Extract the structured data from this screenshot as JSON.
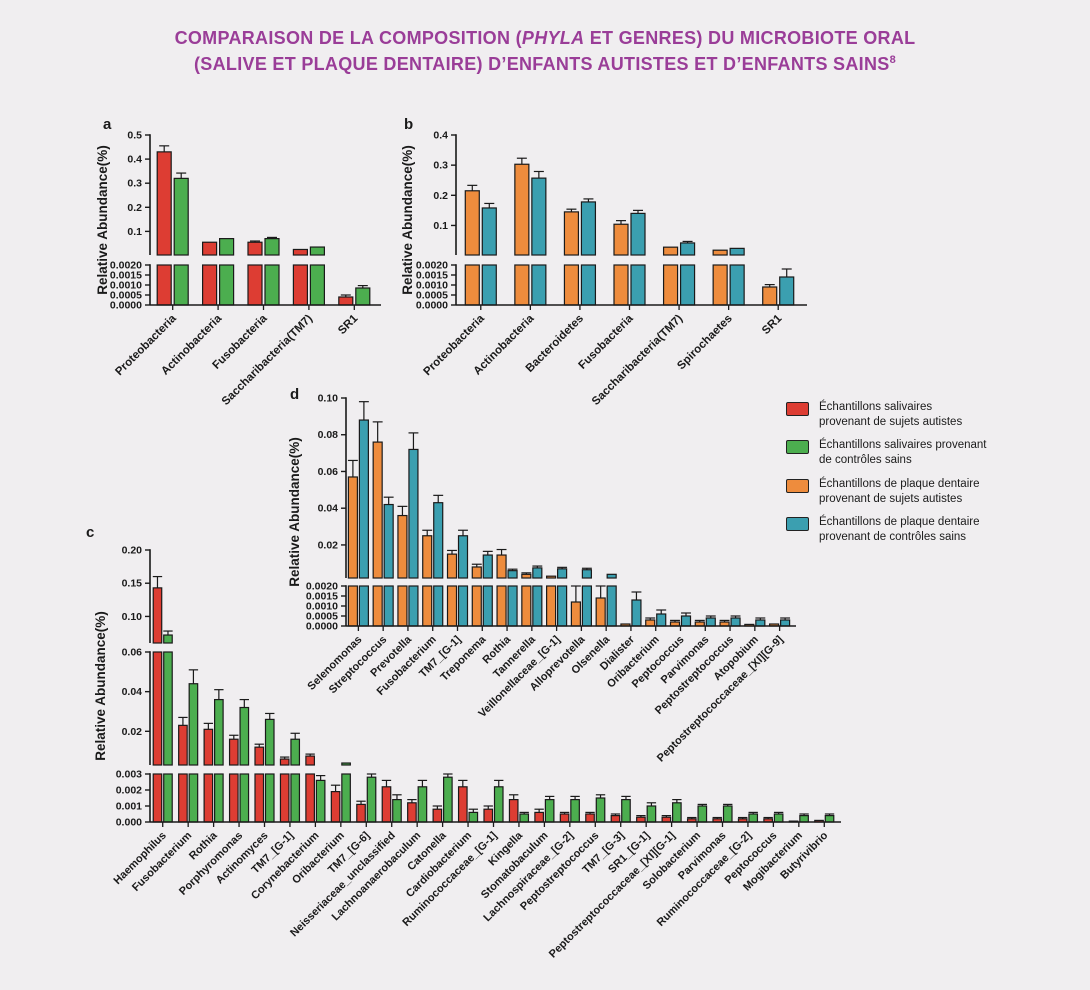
{
  "header": {
    "title_line1_pre": "COMPARAISON DE LA COMPOSITION (",
    "title_line1_em": "PHYLA",
    "title_line1_post": " ET GENRES) DU MICROBIOTE ORAL",
    "title_line2": "(SALIVE ET PLAQUE DENTAIRE) D’ENFANTS AUTISTES ET D’ENFANTS SAINS",
    "title_sup": "8"
  },
  "colors": {
    "red": "#dd3d33",
    "green": "#4cae4f",
    "orange": "#ee8c3d",
    "teal": "#3b9fb0",
    "title": "#9a3d98",
    "background": "#f0eef0",
    "axis": "#1a1a1a"
  },
  "legend": {
    "position": "right",
    "items": [
      {
        "color_key": "red",
        "label": "Échantillons salivaires\nprovenant de sujets autistes"
      },
      {
        "color_key": "green",
        "label": "Échantillons salivaires provenant\nde contrôles sains"
      },
      {
        "color_key": "orange",
        "label": "Échantillons de plaque dentaire\nprovenant de sujets autistes"
      },
      {
        "color_key": "teal",
        "label": "Échantillons de plaque dentaire\nprovenant de contrôles sains"
      }
    ]
  },
  "chart_data": [
    {
      "panel_label": "a",
      "type": "bar",
      "ylabel": "Relative Abundance(%)",
      "broken_axis": true,
      "categories": [
        "Proteobacteria",
        "Actinobacteria",
        "Fusobacteria",
        "Saccharibacteria(TM7)",
        "SR1"
      ],
      "segments": [
        {
          "min": 0,
          "max": 0.002,
          "ticks": [
            0,
            0.0005,
            0.001,
            0.0015,
            0.002
          ],
          "tick_labels": [
            "0.0000",
            "0.0005",
            "0.0010",
            "0.0015",
            "0.0020"
          ]
        },
        {
          "min": 0.002,
          "max": 0.5,
          "ticks": [
            0.1,
            0.2,
            0.3,
            0.4,
            0.5
          ],
          "tick_labels": [
            "0.1",
            "0.2",
            "0.3",
            "0.4",
            "0.5"
          ]
        }
      ],
      "series": [
        {
          "name": "Échantillons salivaires provenant de sujets autistes",
          "color_key": "red",
          "values": [
            0.43,
            0.055,
            0.055,
            0.025,
            0.0004
          ],
          "errors": [
            0.025,
            0.004,
            0.005,
            0.002,
            0.0001
          ]
        },
        {
          "name": "Échantillons salivaires provenant de contrôles sains",
          "color_key": "green",
          "values": [
            0.32,
            0.07,
            0.07,
            0.035,
            0.00085
          ],
          "errors": [
            0.022,
            0.004,
            0.005,
            0.003,
            0.00012
          ]
        }
      ]
    },
    {
      "panel_label": "b",
      "type": "bar",
      "ylabel": "Relative Abundance(%)",
      "broken_axis": true,
      "categories": [
        "Proteobacteria",
        "Actinobacteria",
        "Bacteroidetes",
        "Fusobacteria",
        "Saccharibacteria(TM7)",
        "Spirochaetes",
        "SR1"
      ],
      "segments": [
        {
          "min": 0,
          "max": 0.002,
          "ticks": [
            0,
            0.0005,
            0.001,
            0.0015,
            0.002
          ],
          "tick_labels": [
            "0.0000",
            "0.0005",
            "0.0010",
            "0.0015",
            "0.0020"
          ]
        },
        {
          "min": 0.002,
          "max": 0.4,
          "ticks": [
            0.1,
            0.2,
            0.3,
            0.4
          ],
          "tick_labels": [
            "0.1",
            "0.2",
            "0.3",
            "0.4"
          ]
        }
      ],
      "series": [
        {
          "name": "Échantillons de plaque dentaire provenant de sujets autistes",
          "color_key": "orange",
          "values": [
            0.215,
            0.303,
            0.145,
            0.104,
            0.028,
            0.018,
            0.0009
          ],
          "errors": [
            0.018,
            0.02,
            0.009,
            0.012,
            0.003,
            0.002,
            0.00012
          ]
        },
        {
          "name": "Échantillons de plaque dentaire provenant de contrôles sains",
          "color_key": "teal",
          "values": [
            0.158,
            0.257,
            0.178,
            0.14,
            0.042,
            0.024,
            0.0014
          ],
          "errors": [
            0.015,
            0.022,
            0.01,
            0.01,
            0.005,
            0.003,
            0.0004
          ]
        }
      ]
    },
    {
      "panel_label": "c",
      "type": "bar",
      "ylabel": "Relative Abundance(%)",
      "broken_axis": true,
      "categories": [
        "Haemophilus",
        "Fusobacterium",
        "Rothia",
        "Porphyromonas",
        "Actinomyces",
        "TM7_[G-1]",
        "Corynebacterium",
        "Oribacterium",
        "TM7_[G-6]",
        "Neisseriaceae_unclassified",
        "Lachnoanaerobaculum",
        "Catonella",
        "Cardiobacterium",
        "Ruminococcaceae_[G-1]",
        "Kingella",
        "Stomatobaculum",
        "Lachnospiraceae_[G-2]",
        "Peptostreptococcus",
        "TM7_[G-3]",
        "SR1_[G-1]",
        "Peptostreptococcaceae_[XI][G-1]",
        "Solobacterium",
        "Parvimonas",
        "Ruminococcaceae_[G-2]",
        "Peptococcus",
        "Mogibacterium",
        "Butyrivibrio"
      ],
      "segments": [
        {
          "min": 0,
          "max": 0.003,
          "ticks": [
            0,
            0.001,
            0.002,
            0.003
          ],
          "tick_labels": [
            "0.000",
            "0.001",
            "0.002",
            "0.003"
          ]
        },
        {
          "min": 0.003,
          "max": 0.06,
          "ticks": [
            0.02,
            0.04,
            0.06
          ],
          "tick_labels": [
            "0.02",
            "0.04",
            "0.06"
          ]
        },
        {
          "min": 0.06,
          "max": 0.2,
          "ticks": [
            0.1,
            0.15,
            0.2
          ],
          "tick_labels": [
            "0.10",
            "0.15",
            "0.20"
          ]
        }
      ],
      "series": [
        {
          "name": "Échantillons salivaires provenant de sujets autistes",
          "color_key": "red",
          "values": [
            0.143,
            0.023,
            0.021,
            0.016,
            0.012,
            0.006,
            0.0075,
            0.0019,
            0.0011,
            0.0022,
            0.0012,
            0.0008,
            0.0022,
            0.0008,
            0.0014,
            0.0006,
            0.0005,
            0.0005,
            0.0004,
            0.0003,
            0.0003,
            0.0002,
            0.0002,
            0.0002,
            0.0002,
            5e-05,
            0.0001
          ],
          "errors": [
            0.017,
            0.004,
            0.003,
            0.002,
            0.0015,
            0.001,
            0.001,
            0.0004,
            0.0002,
            0.0004,
            0.0002,
            0.0002,
            0.0004,
            0.0002,
            0.0003,
            0.0002,
            0.0001,
            0.0001,
            0.0001,
            0.0001,
            0.0001,
            8e-05,
            8e-05,
            8e-05,
            8e-05,
            3e-05,
            5e-05
          ]
        },
        {
          "name": "Échantillons salivaires provenant de contrôles sains",
          "color_key": "green",
          "values": [
            0.072,
            0.044,
            0.036,
            0.032,
            0.026,
            0.016,
            0.0026,
            0.004,
            0.0028,
            0.0014,
            0.0022,
            0.0028,
            0.0006,
            0.0022,
            0.0005,
            0.0014,
            0.0014,
            0.0015,
            0.0014,
            0.001,
            0.0012,
            0.001,
            0.001,
            0.0005,
            0.0005,
            0.0004,
            0.0004
          ],
          "errors": [
            0.006,
            0.007,
            0.005,
            0.004,
            0.003,
            0.003,
            0.0003,
            0.0005,
            0.0002,
            0.0003,
            0.0004,
            0.0004,
            0.0002,
            0.0004,
            0.0001,
            0.0002,
            0.0002,
            0.0002,
            0.0002,
            0.0002,
            0.0002,
            0.0001,
            0.0001,
            0.0001,
            0.0001,
            0.0001,
            0.0001
          ]
        }
      ]
    },
    {
      "panel_label": "d",
      "type": "bar",
      "ylabel": "Relative Abundance(%)",
      "broken_axis": true,
      "categories": [
        "Selenomonas",
        "Streptococcus",
        "Prevotella",
        "Fusobacterium",
        "TM7_[G-1]",
        "Treponema",
        "Rothia",
        "Tannerella",
        "Veillonellaceae_[G-1]",
        "Alloprevotella",
        "Olsenella",
        "Dialister",
        "Oribacterium",
        "Peptococcus",
        "Parvimonas",
        "Peptostreptococcus",
        "Atopobium",
        "Peptostreptococcaceae_[XI][G-9]"
      ],
      "segments": [
        {
          "min": 0,
          "max": 0.002,
          "ticks": [
            0,
            0.0005,
            0.001,
            0.0015,
            0.002
          ],
          "tick_labels": [
            "0.0000",
            "0.0005",
            "0.0010",
            "0.0015",
            "0.0020"
          ]
        },
        {
          "min": 0.002,
          "max": 0.1,
          "ticks": [
            0.02,
            0.04,
            0.06,
            0.08,
            0.1
          ],
          "tick_labels": [
            "0.02",
            "0.04",
            "0.06",
            "0.08",
            "0.10"
          ]
        }
      ],
      "series": [
        {
          "name": "Échantillons de plaque dentaire provenant de sujets autistes",
          "color_key": "orange",
          "values": [
            0.057,
            0.076,
            0.036,
            0.025,
            0.015,
            0.008,
            0.0145,
            0.004,
            0.003,
            0.0012,
            0.0014,
            0.0001,
            0.0003,
            0.0002,
            0.0002,
            0.0002,
            8e-05,
            0.0001
          ],
          "errors": [
            0.009,
            0.011,
            0.005,
            0.003,
            0.002,
            0.0015,
            0.003,
            0.0008,
            0.0005,
            0.0008,
            0.0006,
            5e-05,
            0.0001,
            8e-05,
            8e-05,
            8e-05,
            4e-05,
            5e-05
          ]
        },
        {
          "name": "Échantillons de plaque dentaire provenant de contrôles sains",
          "color_key": "teal",
          "values": [
            0.088,
            0.042,
            0.072,
            0.043,
            0.025,
            0.0145,
            0.006,
            0.0075,
            0.007,
            0.0065,
            0.004,
            0.0013,
            0.0006,
            0.0005,
            0.0004,
            0.0004,
            0.0003,
            0.0003
          ],
          "errors": [
            0.01,
            0.004,
            0.009,
            0.004,
            0.003,
            0.002,
            0.0008,
            0.001,
            0.0008,
            0.0008,
            0.0005,
            0.0004,
            0.0002,
            0.00015,
            0.0001,
            0.0001,
            0.0001,
            0.0001
          ]
        }
      ]
    }
  ]
}
